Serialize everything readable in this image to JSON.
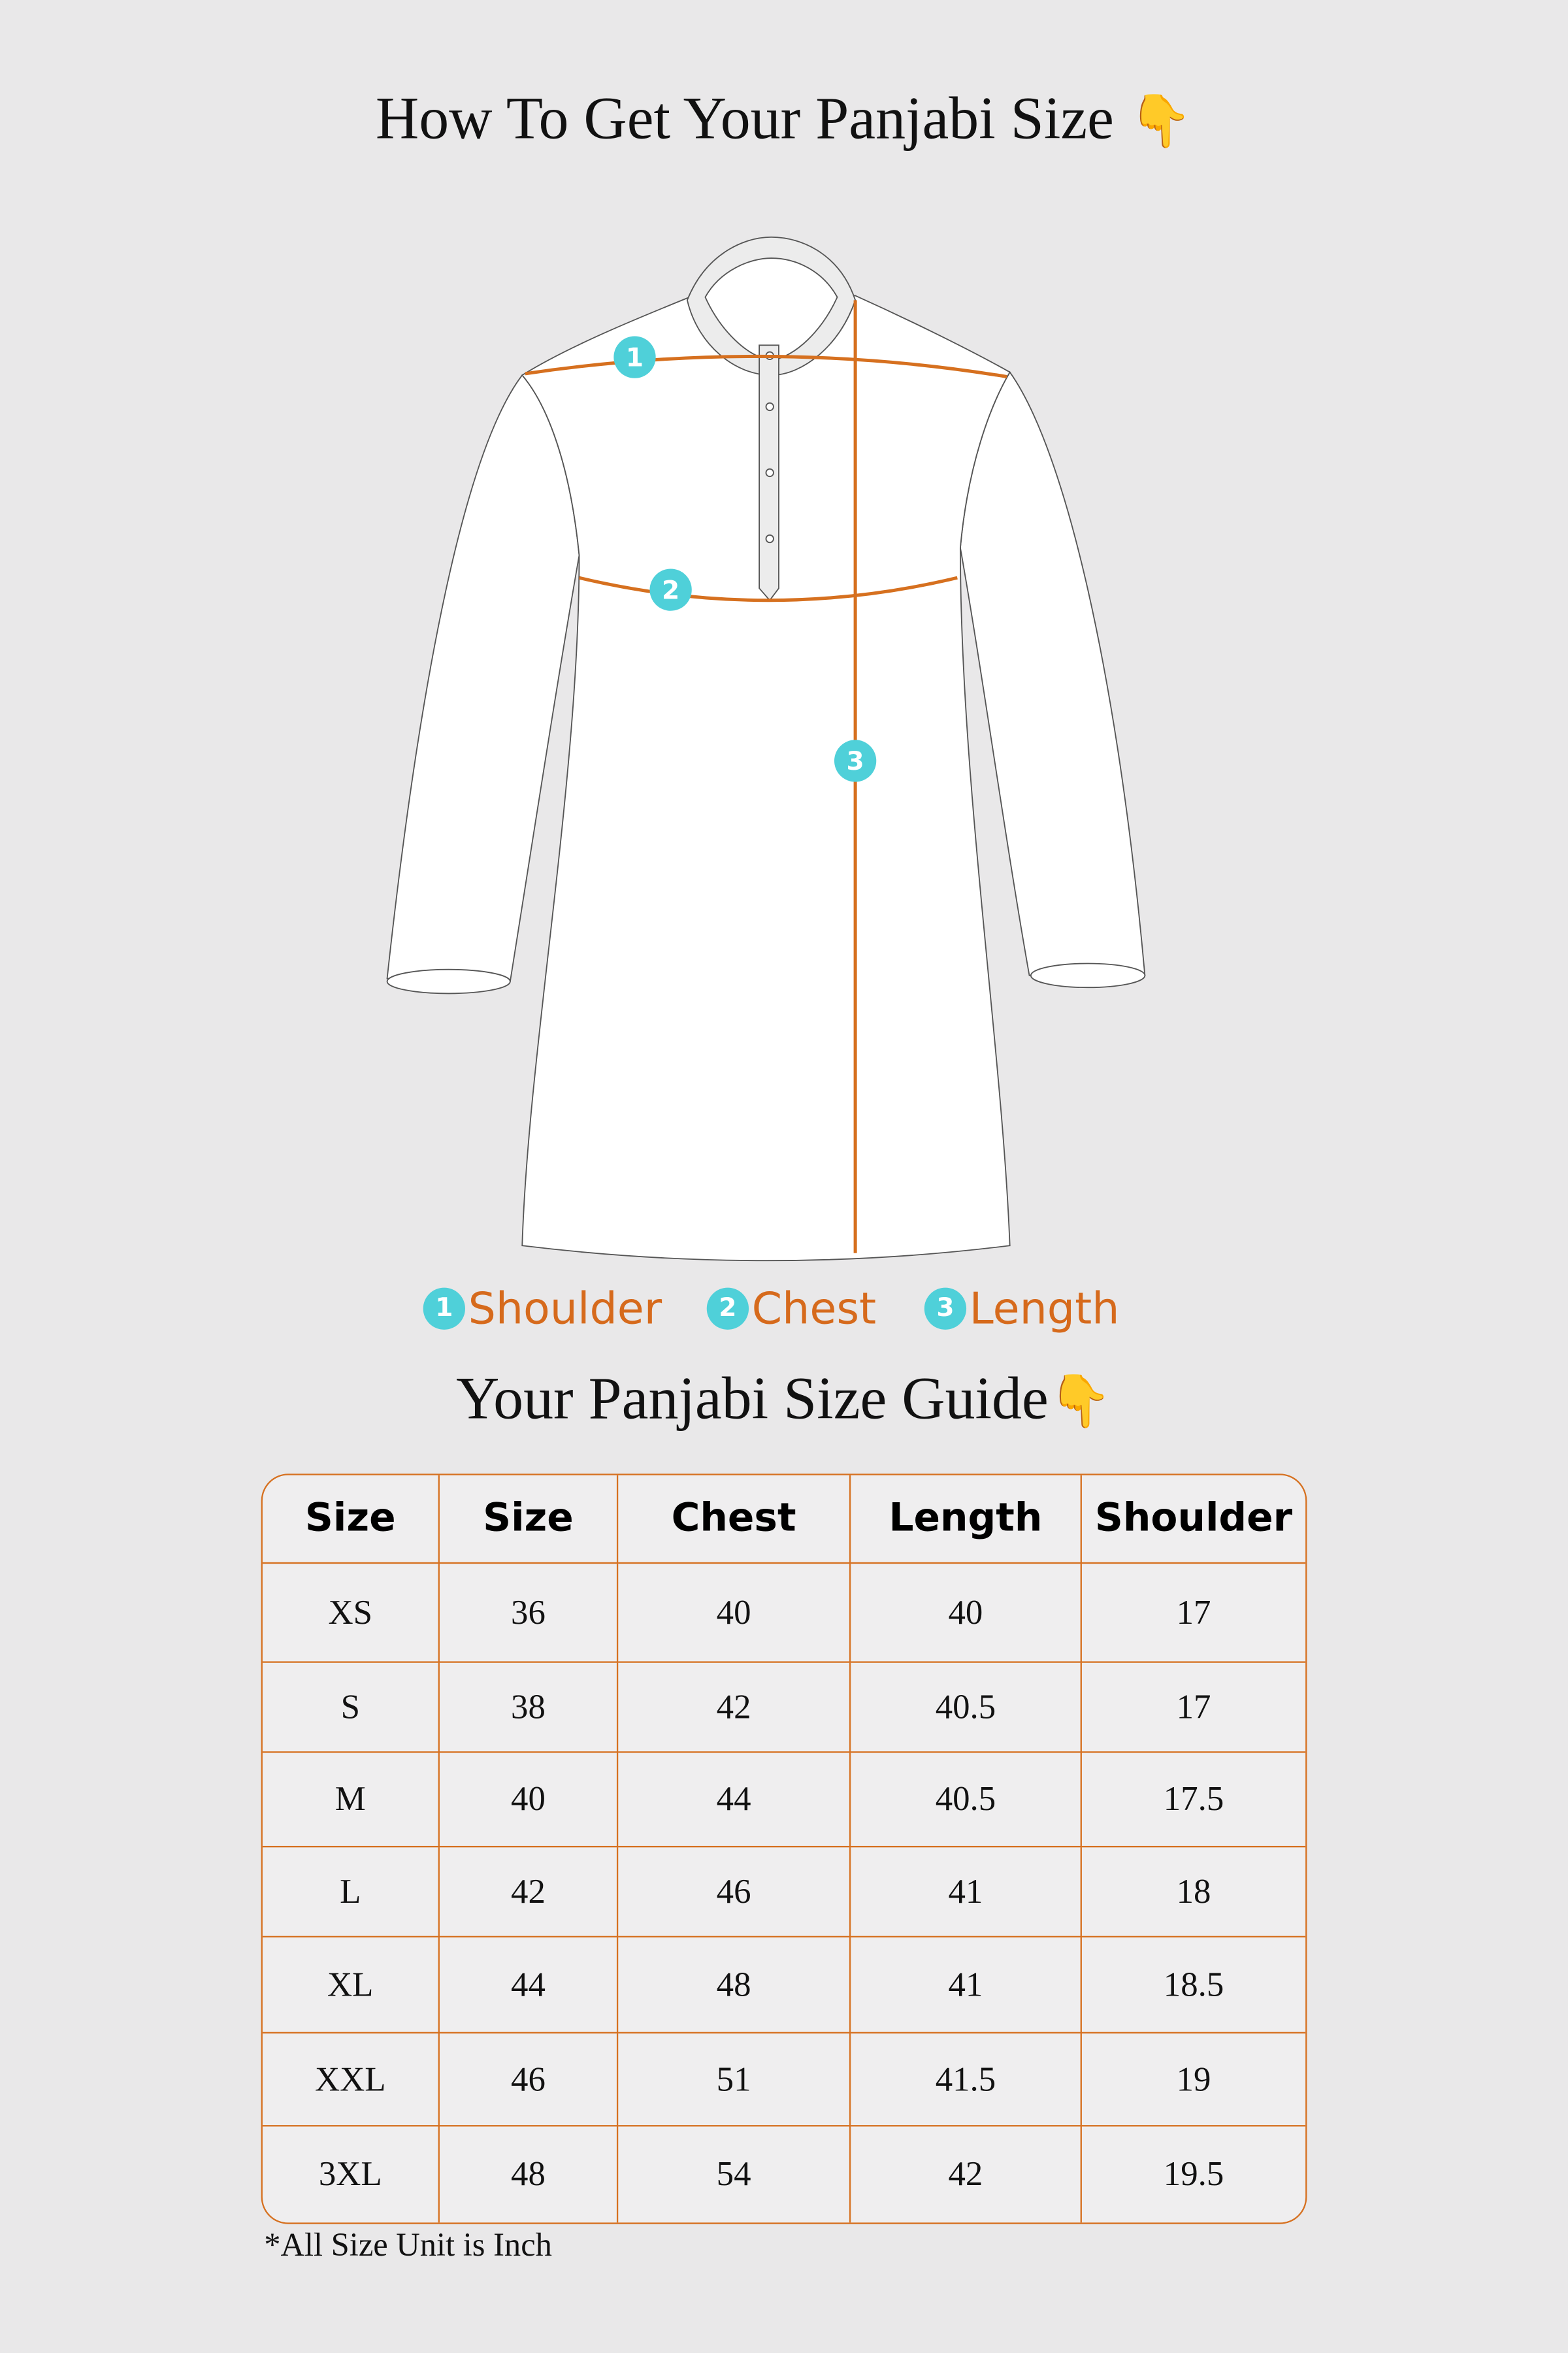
{
  "header": {
    "title": "How To Get Your Panjabi Size",
    "title_emoji": "👇"
  },
  "diagram": {
    "markers": [
      {
        "number": "1",
        "label": "Shoulder"
      },
      {
        "number": "2",
        "label": "Chest"
      },
      {
        "number": "3",
        "label": "Length"
      }
    ],
    "colors": {
      "measure_line": "#d6701f",
      "marker": "#4fd0d9",
      "garment": "#ffffff",
      "background": "#e9e8e9"
    }
  },
  "legend": [
    {
      "number": "1",
      "label": "Shoulder"
    },
    {
      "number": "2",
      "label": "Chest"
    },
    {
      "number": "3",
      "label": "Length"
    }
  ],
  "guide": {
    "title": "Your Panjabi Size Guide",
    "title_emoji": "👇",
    "columns": [
      "Size",
      "Size",
      "Chest",
      "Length",
      "Shoulder"
    ],
    "rows": [
      [
        "XS",
        "36",
        "40",
        "40",
        "17"
      ],
      [
        "S",
        "38",
        "42",
        "40.5",
        "17"
      ],
      [
        "M",
        "40",
        "44",
        "40.5",
        "17.5"
      ],
      [
        "L",
        "42",
        "46",
        "41",
        "18"
      ],
      [
        "XL",
        "44",
        "48",
        "41",
        "18.5"
      ],
      [
        "XXL",
        "46",
        "51",
        "41.5",
        "19"
      ],
      [
        "3XL",
        "48",
        "54",
        "42",
        "19.5"
      ]
    ],
    "note": "*All Size Unit is Inch"
  }
}
